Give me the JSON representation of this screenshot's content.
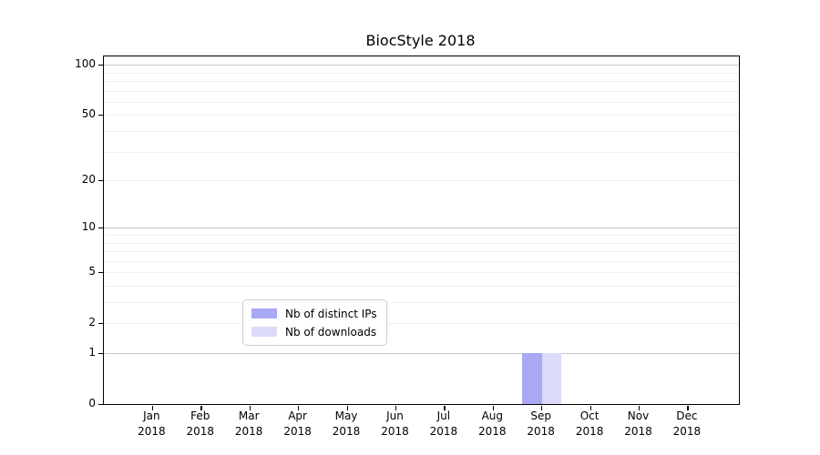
{
  "chart_data": {
    "type": "bar",
    "title": "BiocStyle 2018",
    "categories": [
      "Jan 2018",
      "Feb 2018",
      "Mar 2018",
      "Apr 2018",
      "May 2018",
      "Jun 2018",
      "Jul 2018",
      "Aug 2018",
      "Sep 2018",
      "Oct 2018",
      "Nov 2018",
      "Dec 2018"
    ],
    "series": [
      {
        "name": "Nb of distinct IPs",
        "color": "#a8a8f5",
        "values": [
          0,
          0,
          0,
          0,
          0,
          0,
          0,
          0,
          1,
          0,
          0,
          0
        ]
      },
      {
        "name": "Nb of downloads",
        "color": "#dbdbf9",
        "values": [
          0,
          0,
          0,
          0,
          0,
          0,
          0,
          0,
          1,
          0,
          0,
          0
        ]
      }
    ],
    "xlabel": "",
    "ylabel": "",
    "yaxis": {
      "scale": "log1p",
      "max": 112,
      "ticks": [
        0,
        1,
        2,
        5,
        10,
        20,
        50,
        100
      ],
      "major_gridlines": [
        1,
        10,
        100
      ],
      "minor_gridlines": [
        2,
        3,
        4,
        5,
        6,
        7,
        8,
        9,
        20,
        30,
        40,
        50,
        60,
        70,
        80,
        90
      ]
    },
    "grid": "horizontal",
    "legend_position": "bottom-center"
  },
  "colors": {
    "major_grid": "#c6c6c6",
    "minor_grid": "#efefef",
    "spine": "#000000",
    "background": "#ffffff"
  }
}
